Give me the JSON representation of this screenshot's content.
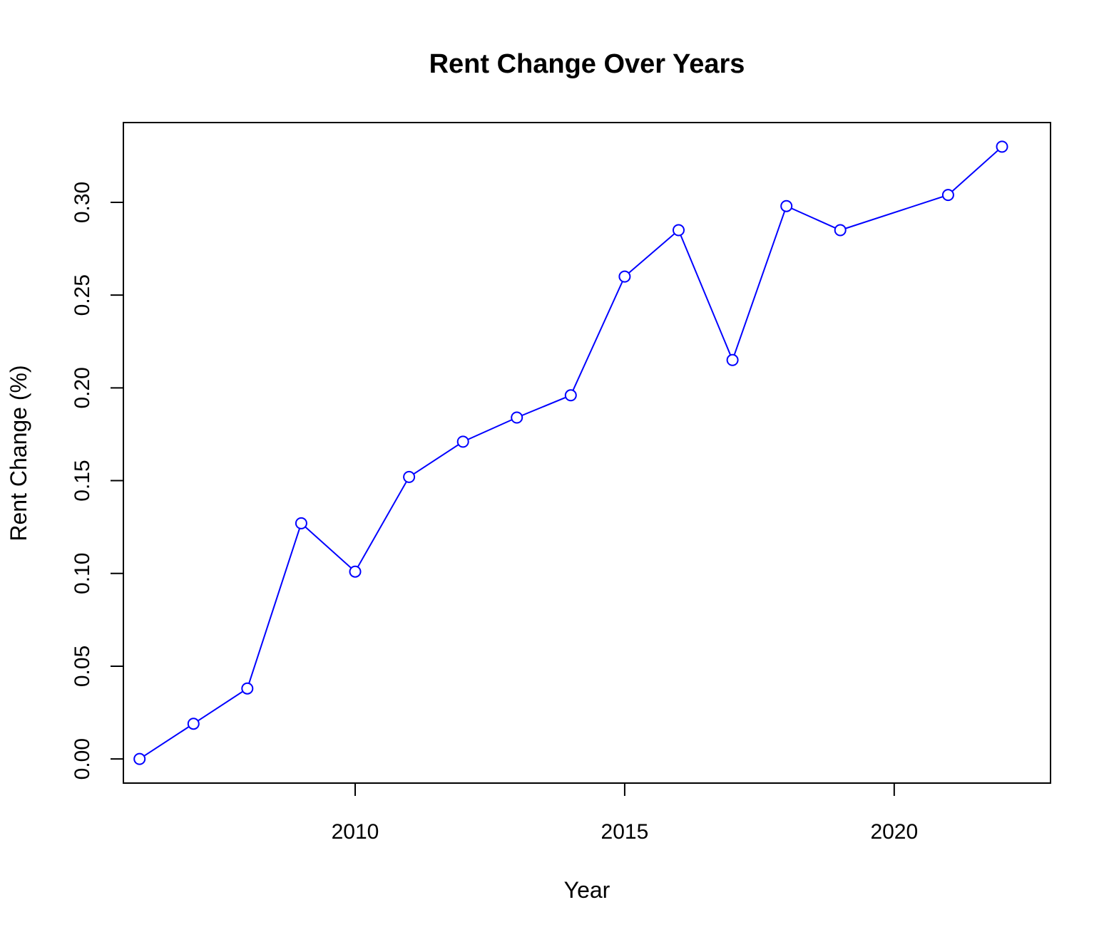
{
  "chart_data": {
    "type": "line",
    "title": "Rent Change Over Years",
    "xlabel": "Year",
    "ylabel": "Rent Change (%)",
    "xlim": [
      2005.7,
      2022.9
    ],
    "ylim": [
      -0.013,
      0.343
    ],
    "x_ticks": [
      2010,
      2015,
      2020
    ],
    "x_tick_labels": [
      "2010",
      "2015",
      "2020"
    ],
    "y_ticks": [
      0.0,
      0.05,
      0.1,
      0.15,
      0.2,
      0.25,
      0.3
    ],
    "y_tick_labels": [
      "0.00",
      "0.05",
      "0.10",
      "0.15",
      "0.20",
      "0.25",
      "0.30"
    ],
    "grid": false,
    "legend": "none",
    "marker": "open-circle",
    "color": "#0000ff",
    "series": [
      {
        "x": [
          2006,
          2007,
          2008,
          2009,
          2010,
          2011,
          2012,
          2013,
          2014,
          2015,
          2016,
          2017,
          2018,
          2019,
          2021,
          2022
        ],
        "values": [
          0.0,
          0.019,
          0.038,
          0.127,
          0.101,
          0.152,
          0.171,
          0.184,
          0.196,
          0.26,
          0.285,
          0.215,
          0.298,
          0.285,
          0.304,
          0.33
        ]
      }
    ]
  }
}
